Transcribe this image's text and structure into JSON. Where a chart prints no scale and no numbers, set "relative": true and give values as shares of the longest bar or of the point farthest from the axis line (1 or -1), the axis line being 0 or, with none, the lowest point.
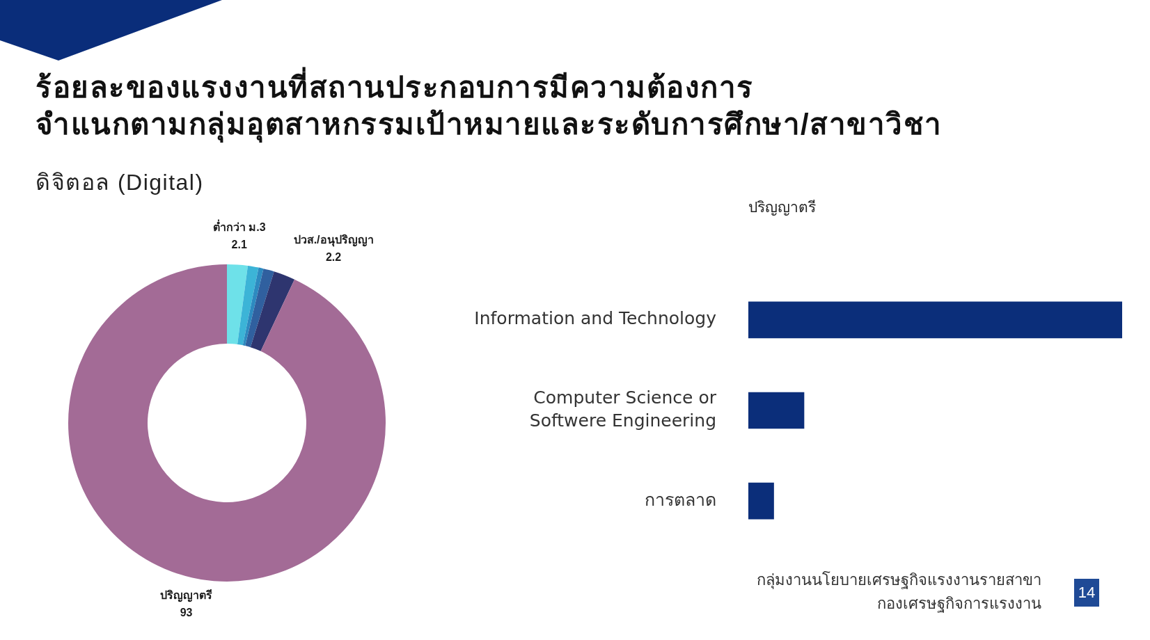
{
  "chart_data": [
    {
      "type": "donut",
      "title": "ร้อยละของแรงงานที่สถานประกอบการมีความต้องการ\nจำแนกตามกลุ่มอุตสาหกรรมเป้าหมายและระดับการศึกษา/สาขาวิชา",
      "subtitle": "ดิจิตอล (Digital)",
      "categories": [
        "ต่ำกว่า ม.3",
        null,
        null,
        null,
        "ปวส./อนุปริญญา",
        "ปริญญาตรี"
      ],
      "values": [
        2.1,
        1.1,
        0.5,
        1.1,
        2.2,
        93
      ],
      "value_labels": [
        "2.1",
        null,
        null,
        null,
        "2.2",
        "93"
      ],
      "colors": [
        "#6ee1e9",
        "#3cb4d7",
        "#2d8ac0",
        "#30609f",
        "#2e356f",
        "#a36b96"
      ]
    },
    {
      "type": "bar",
      "orientation": "horizontal",
      "title": "ปริญญาตรี",
      "categories": [
        "Information and Technology",
        "Computer Science or Softwere Engineering",
        "การตลาด"
      ],
      "values": [
        1,
        0.149,
        0.068
      ],
      "color": "#0b2e7a",
      "relative": true,
      "annotations": [
        "กลุ่มงานนโยบายเศรษฐกิจแรงงานรายสาขา",
        "กองเศรษฐกิจการแรงงาน",
        "14"
      ]
    }
  ]
}
